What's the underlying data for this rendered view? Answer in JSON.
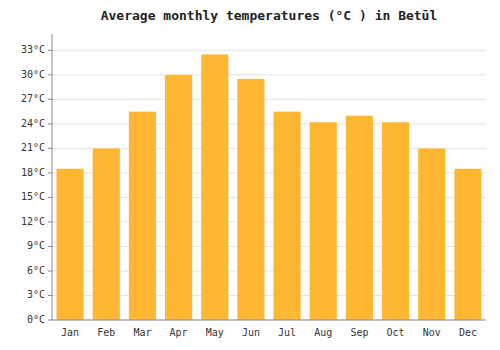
{
  "chart_data": {
    "type": "bar",
    "title": "Average monthly temperatures (°C ) in Betūl",
    "categories": [
      "Jan",
      "Feb",
      "Mar",
      "Apr",
      "May",
      "Jun",
      "Jul",
      "Aug",
      "Sep",
      "Oct",
      "Nov",
      "Dec"
    ],
    "values": [
      18.5,
      21.0,
      25.5,
      30.0,
      32.5,
      29.5,
      25.5,
      24.2,
      25.0,
      24.2,
      21.0,
      18.5
    ],
    "color": "#FFB733",
    "ylim": [
      0,
      35
    ],
    "yticks": [
      {
        "value": 0,
        "label": "0°C"
      },
      {
        "value": 3,
        "label": "3°C"
      },
      {
        "value": 6,
        "label": "6°C"
      },
      {
        "value": 9,
        "label": "9°C"
      },
      {
        "value": 12,
        "label": "12°C"
      },
      {
        "value": 15,
        "label": "15°C"
      },
      {
        "value": 18,
        "label": "18°C"
      },
      {
        "value": 21,
        "label": "21°C"
      },
      {
        "value": 24,
        "label": "24°C"
      },
      {
        "value": 27,
        "label": "27°C"
      },
      {
        "value": 30,
        "label": "30°C"
      },
      {
        "value": 33,
        "label": "33°C"
      }
    ],
    "grid": true
  }
}
